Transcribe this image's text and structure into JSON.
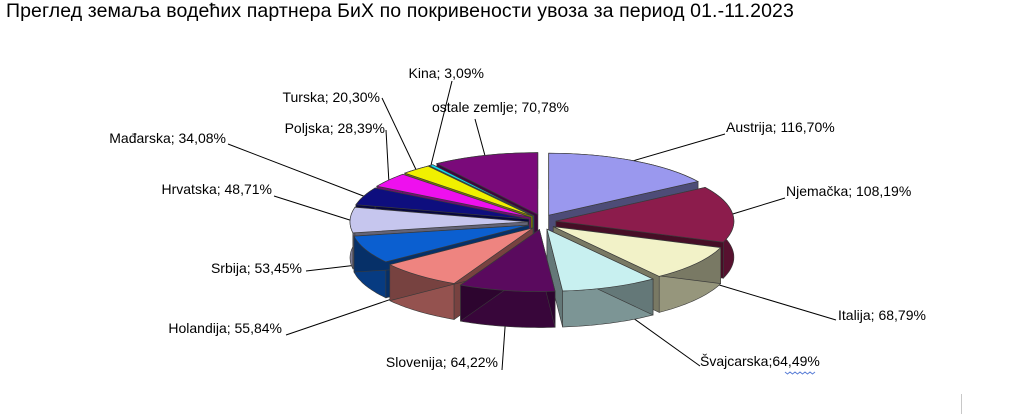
{
  "title": "Преглед земаља водећих партнера БиХ по покривености увоза за период 01.-11.2023",
  "chart_data": {
    "type": "pie",
    "title": "Преглед земаља водећих партнера БиХ по покривености увоза за период 01.-11.2023",
    "style": "3d-exploded",
    "slices": [
      {
        "label": "Austrija; 116,70%",
        "name": "Austrija",
        "value": 116.7,
        "color": "#9a98ee"
      },
      {
        "label": "Njemačka; 108,19%",
        "name": "Njemačka",
        "value": 108.19,
        "color": "#8c1c4c"
      },
      {
        "label": "Italija; 68,79%",
        "name": "Italija",
        "value": 68.79,
        "color": "#f2f2c8"
      },
      {
        "label": "Švajcarska;64,49%",
        "name": "Švajcarska",
        "value": 64.49,
        "color": "#c8f0f0"
      },
      {
        "label": "Slovenija; 64,22%",
        "name": "Slovenija",
        "value": 64.22,
        "color": "#5a0a5e"
      },
      {
        "label": "Holandija; 55,84%",
        "name": "Holandija",
        "value": 55.84,
        "color": "#ee8480"
      },
      {
        "label": "Srbija; 53,45%",
        "name": "Srbija",
        "value": 53.45,
        "color": "#0b5fd0"
      },
      {
        "label": "Hrvatska; 48,71%",
        "name": "Hrvatska",
        "value": 48.71,
        "color": "#c6c6ee"
      },
      {
        "label": "Mađarska; 34,08%",
        "name": "Mađarska",
        "value": 34.08,
        "color": "#0e0e7e"
      },
      {
        "label": "Poljska; 28,39%",
        "name": "Poljska",
        "value": 28.39,
        "color": "#ee10ee"
      },
      {
        "label": "Turska; 20,30%",
        "name": "Turska",
        "value": 20.3,
        "color": "#f0f000"
      },
      {
        "label": "Kina; 3,09%",
        "name": "Kina",
        "value": 3.09,
        "color": "#10d8f0"
      },
      {
        "label": "ostale zemlje; 70,78%",
        "name": "ostale zemlje",
        "value": 70.78,
        "color": "#7a0a7a"
      }
    ]
  }
}
